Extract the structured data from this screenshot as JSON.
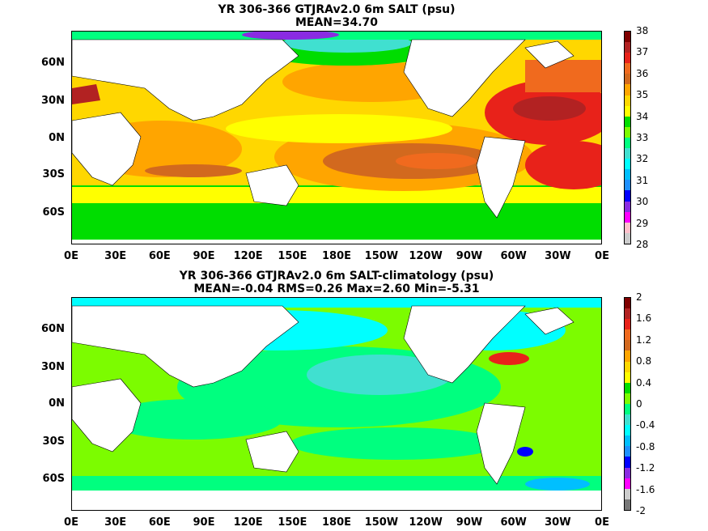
{
  "panels": [
    {
      "title_line1": "YR 306-366 GTJRAv2.0 6m SALT (psu)",
      "title_line2": "MEAN=34.70",
      "colorbar": {
        "labels": [
          "38",
          "37",
          "36",
          "35",
          "34",
          "33",
          "32",
          "31",
          "30",
          "29",
          "28"
        ],
        "colors": [
          "#7f0000",
          "#b22222",
          "#e8221a",
          "#f06a1e",
          "#d2691e",
          "#ffa500",
          "#ffd700",
          "#ffff00",
          "#00dd00",
          "#7cfc00",
          "#00ff7f",
          "#40e0d0",
          "#00ffff",
          "#00bfff",
          "#1e90ff",
          "#0000ff",
          "#8a2be2",
          "#ff00ff",
          "#ffc0cb",
          "#cccccc"
        ]
      }
    },
    {
      "title_line1": "YR 306-366 GTJRAv2.0 6m SALT-climatology (psu)",
      "title_line2": "MEAN=-0.04   RMS=0.26   Max=2.60   Min=-5.31",
      "colorbar": {
        "labels": [
          "2",
          "1.6",
          "1.2",
          "0.8",
          "0.4",
          "0",
          "-0.4",
          "-0.8",
          "-1.2",
          "-1.6",
          "-2"
        ],
        "colors": [
          "#7f0000",
          "#b22222",
          "#e8221a",
          "#f06a1e",
          "#d2691e",
          "#ffa500",
          "#ffd700",
          "#ffff00",
          "#00dd00",
          "#7cfc00",
          "#00ff7f",
          "#40e0d0",
          "#00ffff",
          "#00bfff",
          "#1e90ff",
          "#0000ff",
          "#8a2be2",
          "#ff00ff",
          "#cccccc",
          "#777777"
        ]
      }
    }
  ],
  "axes": {
    "x_ticks": [
      "0E",
      "30E",
      "60E",
      "90E",
      "120E",
      "150E",
      "180E",
      "150W",
      "120W",
      "90W",
      "60W",
      "30W",
      "0E"
    ],
    "y_ticks": [
      "60N",
      "30N",
      "0N",
      "30S",
      "60S"
    ]
  }
}
